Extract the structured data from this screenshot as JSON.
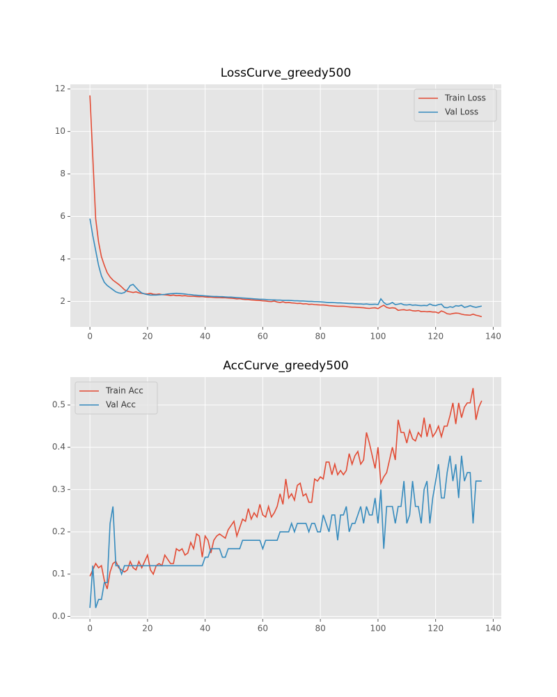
{
  "chart_data": [
    {
      "type": "line",
      "title": "LossCurve_greedy500",
      "x": [
        0,
        1,
        2,
        3,
        4,
        5,
        6,
        7,
        8,
        9,
        10,
        11,
        12,
        13,
        14,
        15,
        16,
        17,
        18,
        19,
        20,
        21,
        22,
        23,
        24,
        25,
        26,
        27,
        28,
        29,
        30,
        31,
        32,
        33,
        34,
        35,
        36,
        37,
        38,
        39,
        40,
        41,
        42,
        43,
        44,
        45,
        46,
        47,
        48,
        49,
        50,
        51,
        52,
        53,
        54,
        55,
        56,
        57,
        58,
        59,
        60,
        61,
        62,
        63,
        64,
        65,
        66,
        67,
        68,
        69,
        70,
        71,
        72,
        73,
        74,
        75,
        76,
        77,
        78,
        79,
        80,
        81,
        82,
        83,
        84,
        85,
        86,
        87,
        88,
        89,
        90,
        91,
        92,
        93,
        94,
        95,
        96,
        97,
        98,
        99,
        100,
        101,
        102,
        103,
        104,
        105,
        106,
        107,
        108,
        109,
        110,
        111,
        112,
        113,
        114,
        115,
        116,
        117,
        118,
        119,
        120,
        121,
        122,
        123,
        124,
        125,
        126,
        127,
        128,
        129,
        130,
        131,
        132,
        133,
        134,
        135,
        136
      ],
      "series": [
        {
          "name": "Train Loss",
          "color": "#E24A33",
          "values": [
            11.7,
            8.8,
            5.9,
            4.8,
            4.1,
            3.7,
            3.35,
            3.15,
            3.0,
            2.9,
            2.8,
            2.68,
            2.55,
            2.48,
            2.45,
            2.42,
            2.45,
            2.4,
            2.38,
            2.36,
            2.35,
            2.38,
            2.34,
            2.33,
            2.35,
            2.32,
            2.31,
            2.3,
            2.28,
            2.3,
            2.27,
            2.28,
            2.26,
            2.27,
            2.25,
            2.24,
            2.24,
            2.23,
            2.22,
            2.23,
            2.21,
            2.2,
            2.2,
            2.19,
            2.18,
            2.18,
            2.17,
            2.17,
            2.16,
            2.15,
            2.14,
            2.12,
            2.13,
            2.1,
            2.09,
            2.09,
            2.07,
            2.06,
            2.05,
            2.04,
            2.03,
            2.02,
            2.0,
            1.99,
            2.02,
            1.97,
            1.95,
            1.98,
            1.94,
            1.95,
            1.93,
            1.92,
            1.9,
            1.91,
            1.88,
            1.89,
            1.86,
            1.87,
            1.85,
            1.84,
            1.83,
            1.83,
            1.82,
            1.8,
            1.79,
            1.78,
            1.77,
            1.77,
            1.77,
            1.76,
            1.74,
            1.73,
            1.73,
            1.72,
            1.71,
            1.7,
            1.68,
            1.67,
            1.69,
            1.7,
            1.66,
            1.75,
            1.82,
            1.72,
            1.68,
            1.7,
            1.68,
            1.58,
            1.6,
            1.61,
            1.58,
            1.6,
            1.56,
            1.55,
            1.57,
            1.52,
            1.53,
            1.51,
            1.52,
            1.5,
            1.5,
            1.45,
            1.55,
            1.5,
            1.42,
            1.4,
            1.43,
            1.45,
            1.44,
            1.4,
            1.37,
            1.36,
            1.35,
            1.4,
            1.35,
            1.32,
            1.28
          ]
        },
        {
          "name": "Val Loss",
          "color": "#348ABD",
          "values": [
            5.9,
            5.1,
            4.4,
            3.7,
            3.2,
            2.9,
            2.75,
            2.65,
            2.55,
            2.45,
            2.4,
            2.38,
            2.42,
            2.55,
            2.75,
            2.8,
            2.65,
            2.5,
            2.4,
            2.35,
            2.32,
            2.3,
            2.3,
            2.3,
            2.31,
            2.32,
            2.33,
            2.35,
            2.36,
            2.37,
            2.38,
            2.37,
            2.36,
            2.35,
            2.33,
            2.32,
            2.3,
            2.29,
            2.28,
            2.27,
            2.26,
            2.25,
            2.24,
            2.23,
            2.23,
            2.22,
            2.22,
            2.21,
            2.2,
            2.2,
            2.19,
            2.18,
            2.17,
            2.16,
            2.15,
            2.14,
            2.13,
            2.12,
            2.11,
            2.1,
            2.1,
            2.09,
            2.08,
            2.07,
            2.07,
            2.06,
            2.06,
            2.05,
            2.05,
            2.05,
            2.04,
            2.03,
            2.03,
            2.02,
            2.02,
            2.01,
            2.0,
            2.0,
            1.99,
            1.99,
            1.98,
            1.97,
            1.96,
            1.95,
            1.95,
            1.94,
            1.93,
            1.93,
            1.92,
            1.91,
            1.9,
            1.9,
            1.89,
            1.88,
            1.88,
            1.87,
            1.88,
            1.86,
            1.86,
            1.87,
            1.85,
            2.12,
            1.95,
            1.85,
            1.88,
            1.95,
            1.85,
            1.87,
            1.9,
            1.84,
            1.83,
            1.85,
            1.82,
            1.83,
            1.81,
            1.8,
            1.81,
            1.8,
            1.88,
            1.82,
            1.8,
            1.85,
            1.87,
            1.72,
            1.7,
            1.75,
            1.72,
            1.8,
            1.78,
            1.82,
            1.72,
            1.75,
            1.8,
            1.75,
            1.72,
            1.75,
            1.78
          ]
        }
      ],
      "xlim": [
        -6.8,
        142.8
      ],
      "xticks": [
        0,
        20,
        40,
        60,
        80,
        100,
        120,
        140
      ],
      "ylim": [
        0.8,
        12.22
      ],
      "yticks": [
        2,
        4,
        6,
        8,
        10,
        12
      ],
      "grid": true,
      "legend": "upper right"
    },
    {
      "type": "line",
      "title": "AccCurve_greedy500",
      "x": [
        0,
        1,
        2,
        3,
        4,
        5,
        6,
        7,
        8,
        9,
        10,
        11,
        12,
        13,
        14,
        15,
        16,
        17,
        18,
        19,
        20,
        21,
        22,
        23,
        24,
        25,
        26,
        27,
        28,
        29,
        30,
        31,
        32,
        33,
        34,
        35,
        36,
        37,
        38,
        39,
        40,
        41,
        42,
        43,
        44,
        45,
        46,
        47,
        48,
        49,
        50,
        51,
        52,
        53,
        54,
        55,
        56,
        57,
        58,
        59,
        60,
        61,
        62,
        63,
        64,
        65,
        66,
        67,
        68,
        69,
        70,
        71,
        72,
        73,
        74,
        75,
        76,
        77,
        78,
        79,
        80,
        81,
        82,
        83,
        84,
        85,
        86,
        87,
        88,
        89,
        90,
        91,
        92,
        93,
        94,
        95,
        96,
        97,
        98,
        99,
        100,
        101,
        102,
        103,
        104,
        105,
        106,
        107,
        108,
        109,
        110,
        111,
        112,
        113,
        114,
        115,
        116,
        117,
        118,
        119,
        120,
        121,
        122,
        123,
        124,
        125,
        126,
        127,
        128,
        129,
        130,
        131,
        132,
        133,
        134,
        135,
        136
      ],
      "series": [
        {
          "name": "Train Acc",
          "color": "#E24A33",
          "values": [
            0.095,
            0.11,
            0.125,
            0.115,
            0.12,
            0.085,
            0.065,
            0.105,
            0.125,
            0.13,
            0.115,
            0.11,
            0.105,
            0.11,
            0.13,
            0.115,
            0.11,
            0.13,
            0.115,
            0.13,
            0.145,
            0.11,
            0.1,
            0.12,
            0.125,
            0.12,
            0.145,
            0.135,
            0.125,
            0.125,
            0.16,
            0.155,
            0.16,
            0.145,
            0.15,
            0.175,
            0.16,
            0.195,
            0.19,
            0.14,
            0.19,
            0.18,
            0.15,
            0.18,
            0.19,
            0.195,
            0.19,
            0.185,
            0.205,
            0.215,
            0.225,
            0.19,
            0.21,
            0.23,
            0.225,
            0.255,
            0.23,
            0.245,
            0.235,
            0.265,
            0.24,
            0.235,
            0.26,
            0.235,
            0.245,
            0.26,
            0.29,
            0.265,
            0.325,
            0.28,
            0.29,
            0.275,
            0.31,
            0.315,
            0.285,
            0.29,
            0.27,
            0.27,
            0.325,
            0.32,
            0.33,
            0.325,
            0.365,
            0.365,
            0.335,
            0.36,
            0.335,
            0.345,
            0.335,
            0.345,
            0.385,
            0.36,
            0.38,
            0.39,
            0.36,
            0.37,
            0.435,
            0.41,
            0.38,
            0.35,
            0.4,
            0.315,
            0.33,
            0.34,
            0.37,
            0.4,
            0.37,
            0.465,
            0.435,
            0.435,
            0.41,
            0.44,
            0.42,
            0.415,
            0.435,
            0.425,
            0.47,
            0.425,
            0.455,
            0.425,
            0.435,
            0.45,
            0.425,
            0.45,
            0.45,
            0.475,
            0.505,
            0.455,
            0.505,
            0.47,
            0.495,
            0.505,
            0.505,
            0.54,
            0.465,
            0.495,
            0.51
          ]
        },
        {
          "name": "Val Acc",
          "color": "#348ABD",
          "values": [
            0.02,
            0.12,
            0.02,
            0.04,
            0.04,
            0.08,
            0.08,
            0.22,
            0.26,
            0.12,
            0.12,
            0.1,
            0.12,
            0.12,
            0.12,
            0.12,
            0.12,
            0.12,
            0.12,
            0.12,
            0.12,
            0.12,
            0.12,
            0.12,
            0.12,
            0.12,
            0.12,
            0.12,
            0.12,
            0.12,
            0.12,
            0.12,
            0.12,
            0.12,
            0.12,
            0.12,
            0.12,
            0.12,
            0.12,
            0.12,
            0.14,
            0.14,
            0.16,
            0.16,
            0.16,
            0.16,
            0.14,
            0.14,
            0.16,
            0.16,
            0.16,
            0.16,
            0.16,
            0.18,
            0.18,
            0.18,
            0.18,
            0.18,
            0.18,
            0.18,
            0.16,
            0.18,
            0.18,
            0.18,
            0.18,
            0.18,
            0.2,
            0.2,
            0.2,
            0.2,
            0.22,
            0.2,
            0.22,
            0.22,
            0.22,
            0.22,
            0.2,
            0.22,
            0.22,
            0.2,
            0.2,
            0.24,
            0.22,
            0.2,
            0.24,
            0.24,
            0.18,
            0.24,
            0.24,
            0.26,
            0.2,
            0.22,
            0.22,
            0.24,
            0.26,
            0.22,
            0.26,
            0.24,
            0.24,
            0.28,
            0.22,
            0.3,
            0.16,
            0.26,
            0.26,
            0.26,
            0.22,
            0.26,
            0.26,
            0.32,
            0.22,
            0.24,
            0.32,
            0.26,
            0.26,
            0.22,
            0.3,
            0.32,
            0.22,
            0.28,
            0.32,
            0.36,
            0.28,
            0.28,
            0.34,
            0.38,
            0.32,
            0.36,
            0.28,
            0.38,
            0.32,
            0.34,
            0.34,
            0.22,
            0.32,
            0.32,
            0.32
          ]
        }
      ],
      "xlim": [
        -6.8,
        142.8
      ],
      "xticks": [
        0,
        20,
        40,
        60,
        80,
        100,
        120,
        140
      ],
      "ylim": [
        -0.006,
        0.566
      ],
      "yticks": [
        {
          "value": 0,
          "label": "0.0"
        },
        0.1,
        0.2,
        0.3,
        0.4,
        0.5
      ],
      "grid": true,
      "legend": "upper left"
    }
  ]
}
